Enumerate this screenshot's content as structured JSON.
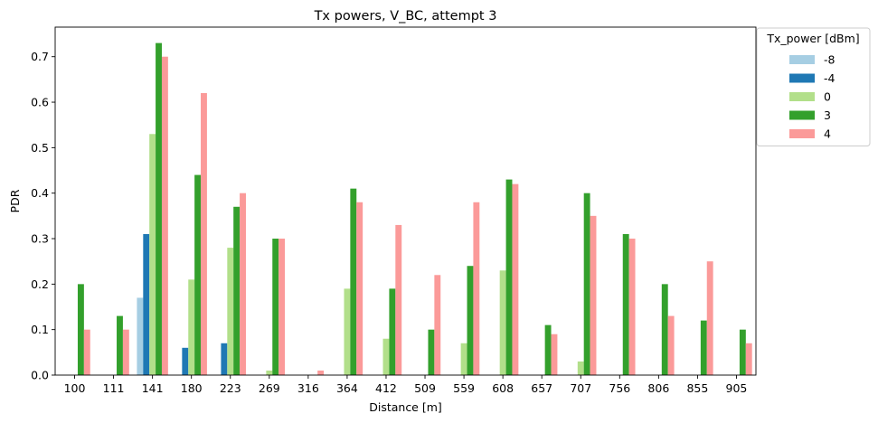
{
  "chart_data": {
    "type": "bar",
    "title": "Tx powers, V_BC, attempt 3",
    "xlabel": "Distance [m]",
    "ylabel": "PDR",
    "ylim": [
      0,
      0.765
    ],
    "yticks": [
      "0.0",
      "0.1",
      "0.2",
      "0.3",
      "0.4",
      "0.5",
      "0.6",
      "0.7"
    ],
    "grid": false,
    "legend": {
      "title": "Tx_power [dBm]",
      "placement": "upper-right-outside"
    },
    "categories": [
      "100",
      "111",
      "141",
      "180",
      "223",
      "269",
      "316",
      "364",
      "412",
      "509",
      "559",
      "608",
      "657",
      "707",
      "756",
      "806",
      "855",
      "905"
    ],
    "series": [
      {
        "name": "-8",
        "color": "#a6cee3",
        "values": [
          0,
          0,
          0.17,
          0,
          0,
          0,
          0,
          0,
          0,
          0,
          0,
          0,
          0,
          0,
          0,
          0,
          0,
          0
        ]
      },
      {
        "name": "-4",
        "color": "#1f78b4",
        "values": [
          0,
          0,
          0.31,
          0.06,
          0.07,
          0,
          0,
          0,
          0,
          0,
          0,
          0,
          0,
          0,
          0,
          0,
          0,
          0
        ]
      },
      {
        "name": "0",
        "color": "#b2df8a",
        "values": [
          0,
          0,
          0.53,
          0.21,
          0.28,
          0.01,
          0,
          0.19,
          0.08,
          0,
          0.07,
          0.23,
          0,
          0.03,
          0,
          0,
          0,
          0
        ]
      },
      {
        "name": "3",
        "color": "#33a02c",
        "values": [
          0.2,
          0.13,
          0.73,
          0.44,
          0.37,
          0.3,
          0,
          0.41,
          0.19,
          0.1,
          0.24,
          0.43,
          0.11,
          0.4,
          0.31,
          0.2,
          0.12,
          0.1
        ]
      },
      {
        "name": "4",
        "color": "#fb9a99",
        "values": [
          0.1,
          0.1,
          0.7,
          0.62,
          0.4,
          0.3,
          0.01,
          0.38,
          0.33,
          0.22,
          0.38,
          0.42,
          0.09,
          0.35,
          0.3,
          0.13,
          0.25,
          0.07
        ]
      }
    ]
  }
}
